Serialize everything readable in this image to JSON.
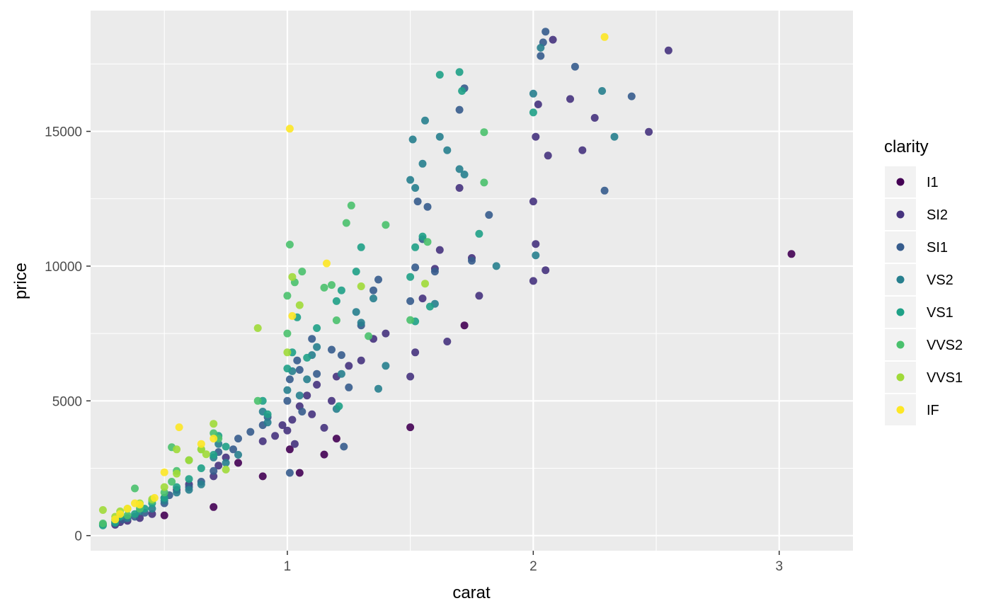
{
  "chart_data": {
    "type": "scatter",
    "title": "",
    "xlabel": "carat",
    "ylabel": "price",
    "xlim": [
      0.2,
      3.3
    ],
    "ylim": [
      -560,
      19480
    ],
    "x_ticks": [
      1,
      2,
      3
    ],
    "x_minor_ticks": [
      0.5,
      1.5,
      2.5
    ],
    "y_ticks": [
      0,
      5000,
      10000,
      15000
    ],
    "y_minor_ticks": [
      2500,
      7500,
      12500,
      17500
    ],
    "grid": true,
    "legend": {
      "title": "clarity",
      "position": "right"
    },
    "series": [
      {
        "name": "I1",
        "color": "#440154",
        "points": [
          [
            0.5,
            750
          ],
          [
            0.7,
            1060
          ],
          [
            0.9,
            2200
          ],
          [
            1.05,
            2330
          ],
          [
            1.15,
            3010
          ],
          [
            1.5,
            4020
          ],
          [
            1.72,
            7800
          ],
          [
            3.05,
            10450
          ],
          [
            0.8,
            2700
          ],
          [
            1.01,
            3200
          ],
          [
            1.2,
            3600
          ]
        ]
      },
      {
        "name": "SI2",
        "color": "#46337e",
        "points": [
          [
            0.3,
            400
          ],
          [
            0.32,
            500
          ],
          [
            0.35,
            550
          ],
          [
            0.4,
            650
          ],
          [
            0.45,
            800
          ],
          [
            0.5,
            1400
          ],
          [
            0.55,
            1700
          ],
          [
            0.6,
            1900
          ],
          [
            0.7,
            2200
          ],
          [
            0.72,
            2600
          ],
          [
            0.75,
            2900
          ],
          [
            0.9,
            3500
          ],
          [
            0.95,
            3700
          ],
          [
            1.0,
            3900
          ],
          [
            1.02,
            4300
          ],
          [
            1.05,
            4800
          ],
          [
            1.08,
            5200
          ],
          [
            1.1,
            4500
          ],
          [
            1.12,
            5600
          ],
          [
            1.15,
            4000
          ],
          [
            1.2,
            5900
          ],
          [
            1.25,
            6300
          ],
          [
            1.3,
            6500
          ],
          [
            1.35,
            7300
          ],
          [
            1.4,
            7500
          ],
          [
            1.5,
            5900
          ],
          [
            1.52,
            6800
          ],
          [
            1.55,
            8800
          ],
          [
            1.6,
            9900
          ],
          [
            1.62,
            10600
          ],
          [
            1.65,
            7200
          ],
          [
            1.7,
            12900
          ],
          [
            1.75,
            10300
          ],
          [
            1.78,
            8900
          ],
          [
            2.0,
            9450
          ],
          [
            2.01,
            10820
          ],
          [
            2.02,
            16000
          ],
          [
            2.05,
            9850
          ],
          [
            2.06,
            14100
          ],
          [
            2.08,
            18400
          ],
          [
            2.15,
            16200
          ],
          [
            2.2,
            14300
          ],
          [
            2.25,
            15500
          ],
          [
            2.47,
            14980
          ],
          [
            2.55,
            18000
          ],
          [
            2.01,
            14800
          ],
          [
            2.0,
            12400
          ],
          [
            1.03,
            3400
          ],
          [
            0.98,
            4100
          ],
          [
            1.18,
            5000
          ]
        ]
      },
      {
        "name": "SI1",
        "color": "#365c8d",
        "points": [
          [
            0.3,
            450
          ],
          [
            0.33,
            600
          ],
          [
            0.38,
            700
          ],
          [
            0.42,
            850
          ],
          [
            0.5,
            1200
          ],
          [
            0.52,
            1500
          ],
          [
            0.6,
            1800
          ],
          [
            0.65,
            2000
          ],
          [
            0.7,
            2400
          ],
          [
            0.72,
            3100
          ],
          [
            0.78,
            3200
          ],
          [
            0.8,
            3600
          ],
          [
            0.85,
            3850
          ],
          [
            0.9,
            4100
          ],
          [
            0.92,
            4400
          ],
          [
            1.0,
            5000
          ],
          [
            1.01,
            5800
          ],
          [
            1.04,
            6500
          ],
          [
            1.06,
            4600
          ],
          [
            1.1,
            7300
          ],
          [
            1.12,
            6000
          ],
          [
            1.18,
            6900
          ],
          [
            1.22,
            6700
          ],
          [
            1.25,
            5500
          ],
          [
            1.3,
            7800
          ],
          [
            1.35,
            9100
          ],
          [
            1.37,
            9500
          ],
          [
            1.5,
            8700
          ],
          [
            1.52,
            9950
          ],
          [
            1.53,
            12400
          ],
          [
            1.55,
            11000
          ],
          [
            1.57,
            12200
          ],
          [
            1.6,
            9800
          ],
          [
            1.7,
            15800
          ],
          [
            1.72,
            16600
          ],
          [
            1.75,
            10200
          ],
          [
            1.82,
            11900
          ],
          [
            2.03,
            17800
          ],
          [
            2.04,
            18300
          ],
          [
            2.05,
            18700
          ],
          [
            2.17,
            17400
          ],
          [
            2.29,
            12800
          ],
          [
            2.4,
            16300
          ],
          [
            1.01,
            2330
          ],
          [
            1.23,
            3300
          ],
          [
            1.05,
            6150
          ]
        ]
      },
      {
        "name": "VS2",
        "color": "#277f8e",
        "points": [
          [
            0.25,
            420
          ],
          [
            0.3,
            520
          ],
          [
            0.35,
            650
          ],
          [
            0.4,
            900
          ],
          [
            0.45,
            1000
          ],
          [
            0.5,
            1300
          ],
          [
            0.55,
            1600
          ],
          [
            0.6,
            1700
          ],
          [
            0.65,
            1900
          ],
          [
            0.7,
            2900
          ],
          [
            0.72,
            3400
          ],
          [
            0.75,
            2700
          ],
          [
            0.8,
            3000
          ],
          [
            0.9,
            4600
          ],
          [
            0.92,
            4200
          ],
          [
            1.0,
            5400
          ],
          [
            1.02,
            6100
          ],
          [
            1.05,
            5200
          ],
          [
            1.08,
            5800
          ],
          [
            1.1,
            6700
          ],
          [
            1.12,
            7000
          ],
          [
            1.2,
            4700
          ],
          [
            1.22,
            6000
          ],
          [
            1.3,
            7900
          ],
          [
            1.35,
            8800
          ],
          [
            1.4,
            6300
          ],
          [
            1.5,
            13200
          ],
          [
            1.51,
            14700
          ],
          [
            1.52,
            12900
          ],
          [
            1.55,
            13800
          ],
          [
            1.56,
            15400
          ],
          [
            1.6,
            8600
          ],
          [
            1.62,
            14800
          ],
          [
            1.65,
            14300
          ],
          [
            1.7,
            13600
          ],
          [
            1.72,
            13400
          ],
          [
            1.85,
            10000
          ],
          [
            2.0,
            16400
          ],
          [
            2.01,
            10400
          ],
          [
            2.03,
            18100
          ],
          [
            2.28,
            16500
          ],
          [
            2.33,
            14800
          ],
          [
            1.37,
            5450
          ],
          [
            1.28,
            8300
          ]
        ]
      },
      {
        "name": "VS1",
        "color": "#1fa187",
        "points": [
          [
            0.25,
            380
          ],
          [
            0.3,
            480
          ],
          [
            0.32,
            700
          ],
          [
            0.38,
            800
          ],
          [
            0.42,
            1000
          ],
          [
            0.45,
            1200
          ],
          [
            0.5,
            1400
          ],
          [
            0.55,
            1800
          ],
          [
            0.6,
            2100
          ],
          [
            0.65,
            2500
          ],
          [
            0.7,
            3000
          ],
          [
            0.72,
            3700
          ],
          [
            0.75,
            3300
          ],
          [
            0.9,
            5000
          ],
          [
            0.92,
            4500
          ],
          [
            1.0,
            6200
          ],
          [
            1.02,
            6800
          ],
          [
            1.04,
            8100
          ],
          [
            1.08,
            6600
          ],
          [
            1.12,
            7700
          ],
          [
            1.2,
            8700
          ],
          [
            1.22,
            9100
          ],
          [
            1.28,
            9800
          ],
          [
            1.3,
            10700
          ],
          [
            1.5,
            9600
          ],
          [
            1.52,
            10700
          ],
          [
            1.55,
            11100
          ],
          [
            1.58,
            8500
          ],
          [
            1.62,
            17100
          ],
          [
            1.7,
            17200
          ],
          [
            1.71,
            16500
          ],
          [
            1.78,
            11200
          ],
          [
            2.0,
            15700
          ],
          [
            1.52,
            7950
          ],
          [
            1.21,
            4800
          ]
        ]
      },
      {
        "name": "VVS2",
        "color": "#4ac16d",
        "points": [
          [
            0.25,
            450
          ],
          [
            0.3,
            600
          ],
          [
            0.35,
            750
          ],
          [
            0.4,
            1000
          ],
          [
            0.45,
            1300
          ],
          [
            0.5,
            1600
          ],
          [
            0.53,
            2000
          ],
          [
            0.55,
            2400
          ],
          [
            0.6,
            2800
          ],
          [
            0.65,
            3200
          ],
          [
            0.7,
            3800
          ],
          [
            0.72,
            3600
          ],
          [
            0.88,
            5000
          ],
          [
            1.0,
            7500
          ],
          [
            1.0,
            8900
          ],
          [
            1.01,
            10800
          ],
          [
            1.03,
            9400
          ],
          [
            1.06,
            9800
          ],
          [
            1.15,
            9200
          ],
          [
            1.18,
            9300
          ],
          [
            1.24,
            11600
          ],
          [
            1.26,
            12250
          ],
          [
            1.33,
            7400
          ],
          [
            1.4,
            11530
          ],
          [
            1.5,
            8000
          ],
          [
            1.57,
            10900
          ],
          [
            1.8,
            14970
          ],
          [
            1.8,
            13100
          ],
          [
            1.2,
            7990
          ],
          [
            0.53,
            3280
          ],
          [
            0.38,
            1750
          ]
        ]
      },
      {
        "name": "VVS1",
        "color": "#a0da39",
        "points": [
          [
            0.25,
            950
          ],
          [
            0.3,
            700
          ],
          [
            0.32,
            900
          ],
          [
            0.35,
            1000
          ],
          [
            0.4,
            1200
          ],
          [
            0.45,
            1350
          ],
          [
            0.5,
            1800
          ],
          [
            0.55,
            2300
          ],
          [
            0.6,
            2800
          ],
          [
            0.65,
            3200
          ],
          [
            0.7,
            4150
          ],
          [
            0.75,
            2450
          ],
          [
            0.88,
            7700
          ],
          [
            1.0,
            6800
          ],
          [
            1.02,
            9600
          ],
          [
            1.05,
            8550
          ],
          [
            1.3,
            9250
          ],
          [
            1.56,
            9350
          ],
          [
            0.67,
            3020
          ],
          [
            0.55,
            3200
          ]
        ]
      },
      {
        "name": "IF",
        "color": "#fde725",
        "points": [
          [
            0.3,
            600
          ],
          [
            0.32,
            800
          ],
          [
            0.35,
            1000
          ],
          [
            0.38,
            1200
          ],
          [
            0.4,
            1150
          ],
          [
            0.5,
            2350
          ],
          [
            0.56,
            4020
          ],
          [
            0.65,
            3400
          ],
          [
            0.7,
            3600
          ],
          [
            1.01,
            15100
          ],
          [
            1.02,
            8150
          ],
          [
            1.16,
            10100
          ],
          [
            2.29,
            18500
          ],
          [
            0.46,
            1400
          ]
        ]
      }
    ]
  }
}
